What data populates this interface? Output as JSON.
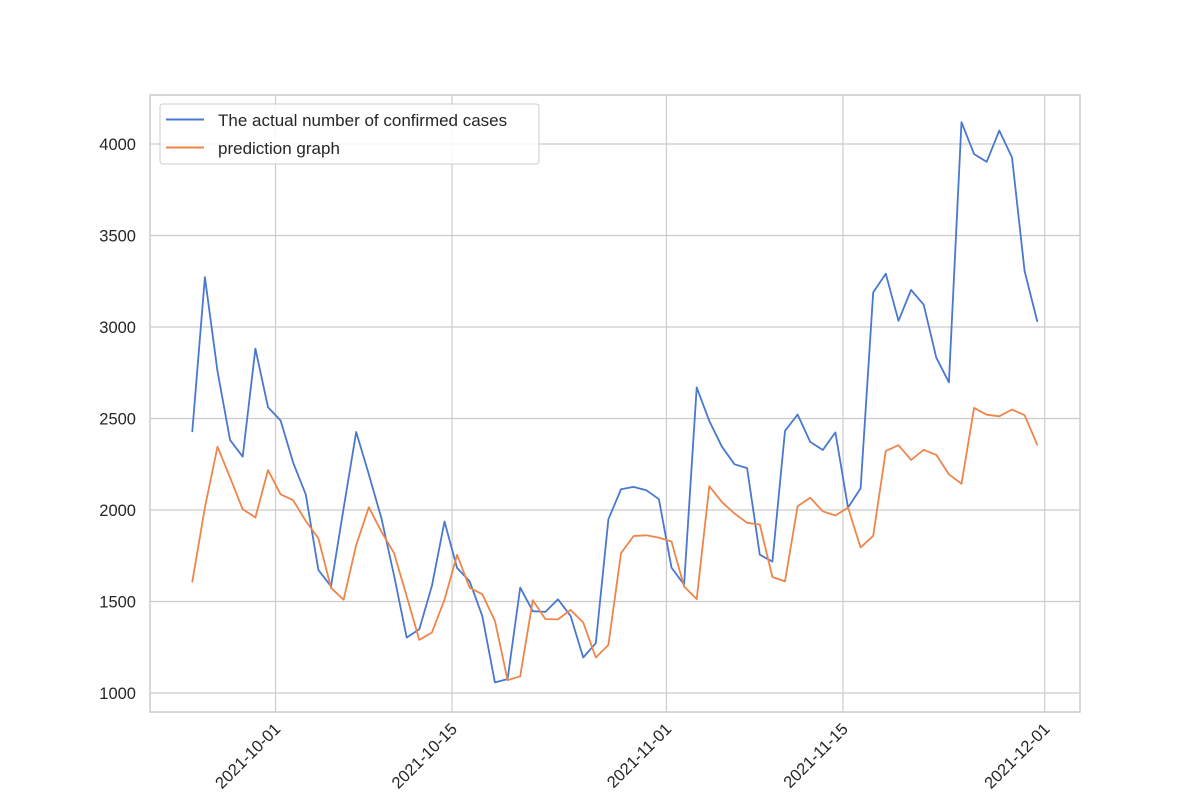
{
  "chart_data": {
    "type": "line",
    "title": "",
    "xlabel": "",
    "ylabel": "",
    "ylim": [
      900,
      4260
    ],
    "grid": true,
    "legend_position": "upper left",
    "x_ticks": [
      "2021-10-01",
      "2021-10-15",
      "2021-11-01",
      "2021-11-15",
      "2021-12-01"
    ],
    "y_ticks": [
      1000,
      1500,
      2000,
      2500,
      3000,
      3500,
      4000
    ],
    "x_start_date": "2021-09-24",
    "x_end_date": "2021-11-30",
    "x": [
      "2021-09-24",
      "2021-09-25",
      "2021-09-26",
      "2021-09-27",
      "2021-09-28",
      "2021-09-29",
      "2021-09-30",
      "2021-10-01",
      "2021-10-02",
      "2021-10-03",
      "2021-10-04",
      "2021-10-05",
      "2021-10-06",
      "2021-10-07",
      "2021-10-08",
      "2021-10-09",
      "2021-10-10",
      "2021-10-11",
      "2021-10-12",
      "2021-10-13",
      "2021-10-14",
      "2021-10-15",
      "2021-10-16",
      "2021-10-17",
      "2021-10-18",
      "2021-10-19",
      "2021-10-20",
      "2021-10-21",
      "2021-10-22",
      "2021-10-23",
      "2021-10-24",
      "2021-10-25",
      "2021-10-26",
      "2021-10-27",
      "2021-10-28",
      "2021-10-29",
      "2021-10-30",
      "2021-10-31",
      "2021-11-01",
      "2021-11-02",
      "2021-11-03",
      "2021-11-04",
      "2021-11-05",
      "2021-11-06",
      "2021-11-07",
      "2021-11-08",
      "2021-11-09",
      "2021-11-10",
      "2021-11-11",
      "2021-11-12",
      "2021-11-13",
      "2021-11-14",
      "2021-11-15",
      "2021-11-16",
      "2021-11-17",
      "2021-11-18",
      "2021-11-19",
      "2021-11-20",
      "2021-11-21",
      "2021-11-22",
      "2021-11-23",
      "2021-11-24",
      "2021-11-25",
      "2021-11-26",
      "2021-11-27",
      "2021-11-28",
      "2021-11-29",
      "2021-11-30"
    ],
    "series": [
      {
        "name": "The actual number of confirmed cases",
        "color": "#4878d0",
        "values": [
          2430,
          3272,
          2758,
          2382,
          2291,
          2882,
          2562,
          2489,
          2258,
          2084,
          1672,
          1583,
          2009,
          2426,
          2195,
          1955,
          1641,
          1303,
          1348,
          1585,
          1937,
          1683,
          1610,
          1420,
          1058,
          1076,
          1576,
          1447,
          1443,
          1512,
          1421,
          1194,
          1272,
          1949,
          2113,
          2126,
          2108,
          2059,
          1685,
          1592,
          2670,
          2487,
          2346,
          2250,
          2229,
          1756,
          1718,
          2432,
          2522,
          2372,
          2328,
          2424,
          2013,
          2118,
          3189,
          3291,
          3034,
          3203,
          3122,
          2832,
          2698,
          4119,
          3945,
          3903,
          4073,
          3927,
          3306,
          3032
        ]
      },
      {
        "name": "prediction graph",
        "color": "#ee854a",
        "values": [
          1609,
          2013,
          2346,
          2177,
          2004,
          1959,
          2218,
          2086,
          2053,
          1940,
          1845,
          1575,
          1510,
          1808,
          2015,
          1882,
          1764,
          1529,
          1290,
          1330,
          1510,
          1755,
          1575,
          1540,
          1395,
          1070,
          1091,
          1507,
          1404,
          1402,
          1454,
          1385,
          1194,
          1263,
          1764,
          1858,
          1862,
          1849,
          1828,
          1582,
          1513,
          2130,
          2043,
          1981,
          1930,
          1921,
          1634,
          1610,
          2021,
          2067,
          1993,
          1970,
          2013,
          1795,
          1859,
          2323,
          2354,
          2274,
          2329,
          2301,
          2195,
          2143,
          2558,
          2521,
          2512,
          2549,
          2518,
          2357
        ]
      }
    ]
  },
  "legend": {
    "items": [
      {
        "label": "The actual number of confirmed cases",
        "color": "#4878d0"
      },
      {
        "label": "prediction graph",
        "color": "#ee854a"
      }
    ]
  },
  "style": {
    "grid_color": "#cccccc",
    "frame_color": "#cccccc",
    "text_color": "#262626"
  }
}
